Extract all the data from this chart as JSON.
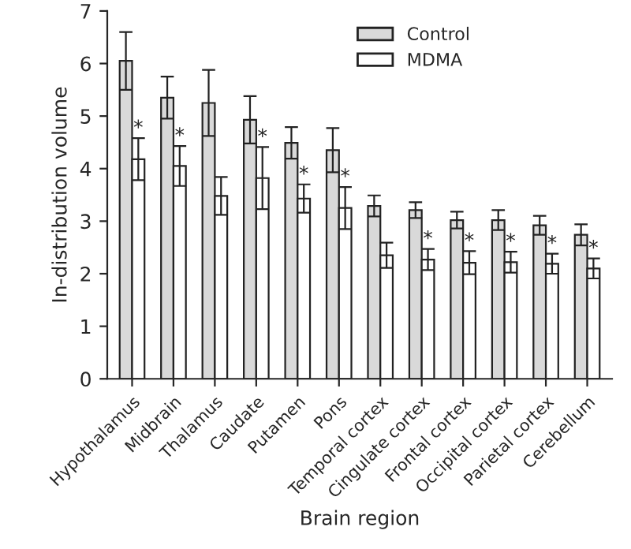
{
  "chart_data": {
    "type": "bar",
    "xlabel": "Brain region",
    "ylabel": "In-distribution volume",
    "categories": [
      "Hypothalamus",
      "Midbrain",
      "Thalamus",
      "Caudate",
      "Putamen",
      "Pons",
      "Temporal cortex",
      "Cingulate cortex",
      "Frontal cortex",
      "Occipital cortex",
      "Parietal cortex",
      "Cerebellum"
    ],
    "series": [
      {
        "name": "Control",
        "color": "#d9d9d9",
        "values": [
          6.05,
          5.35,
          5.25,
          4.93,
          4.49,
          4.35,
          3.29,
          3.21,
          3.02,
          3.02,
          2.92,
          2.74
        ],
        "errors": [
          0.55,
          0.4,
          0.63,
          0.45,
          0.3,
          0.42,
          0.2,
          0.15,
          0.16,
          0.19,
          0.18,
          0.2
        ]
      },
      {
        "name": "MDMA",
        "color": "#ffffff",
        "values": [
          4.18,
          4.05,
          3.48,
          3.82,
          3.43,
          3.25,
          2.35,
          2.27,
          2.21,
          2.22,
          2.19,
          2.1
        ],
        "errors": [
          0.4,
          0.38,
          0.36,
          0.59,
          0.27,
          0.4,
          0.24,
          0.2,
          0.22,
          0.2,
          0.19,
          0.19
        ]
      }
    ],
    "annotations": [
      {
        "text": "*",
        "x": "Hypothalamus",
        "y": 4.58
      },
      {
        "text": "*",
        "x": "Midbrain",
        "y": 4.43
      },
      {
        "text": "*",
        "x": "Caudate",
        "y": 4.41
      },
      {
        "text": "*",
        "x": "Putamen",
        "y": 3.7
      },
      {
        "text": "*",
        "x": "Pons",
        "y": 3.65
      },
      {
        "text": "*",
        "x": "Cingulate cortex",
        "y": 2.47
      },
      {
        "text": "*",
        "x": "Frontal cortex",
        "y": 2.43
      },
      {
        "text": "*",
        "x": "Occipital cortex",
        "y": 2.42
      },
      {
        "text": "*",
        "x": "Parietal cortex",
        "y": 2.38
      },
      {
        "text": "*",
        "x": "Cerebellum",
        "y": 2.29
      }
    ],
    "ylim": [
      0,
      7
    ],
    "yticks": [
      0,
      1,
      2,
      3,
      4,
      5,
      6,
      7
    ],
    "grid": false,
    "legend": "top right"
  }
}
